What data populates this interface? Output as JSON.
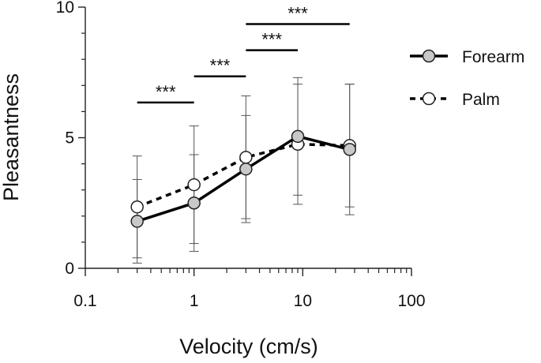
{
  "chart_data": {
    "type": "line",
    "title": "",
    "xlabel": "Velocity (cm/s)",
    "ylabel": "Pleasantness",
    "xscale": "log",
    "xlim": [
      0.1,
      100
    ],
    "ylim": [
      0,
      10
    ],
    "xticks": [
      {
        "value": 0.1,
        "label": "0.1"
      },
      {
        "value": 1,
        "label": "1"
      },
      {
        "value": 10,
        "label": "10"
      },
      {
        "value": 100,
        "label": "100"
      }
    ],
    "yticks": [
      {
        "value": 0,
        "label": "0"
      },
      {
        "value": 5,
        "label": "5"
      },
      {
        "value": 10,
        "label": "10"
      }
    ],
    "x": [
      0.3,
      1,
      3,
      9,
      27
    ],
    "series": [
      {
        "name": "Forearm",
        "values": [
          1.8,
          2.5,
          3.8,
          5.05,
          4.55
        ],
        "errors": [
          1.6,
          1.85,
          2.05,
          2.25,
          2.5
        ],
        "line_style": "solid",
        "marker_fill": "#c8c8c8",
        "color": "#000000"
      },
      {
        "name": "Palm",
        "values": [
          2.35,
          3.2,
          4.25,
          4.75,
          4.7
        ],
        "errors": [
          1.95,
          2.25,
          2.35,
          2.3,
          2.35
        ],
        "line_style": "dashed",
        "marker_fill": "#ffffff",
        "color": "#000000"
      }
    ],
    "significance": [
      {
        "x_from": 0.3,
        "x_to": 1,
        "y": 6.35,
        "label": "***"
      },
      {
        "x_from": 1,
        "x_to": 3,
        "y": 7.35,
        "label": "***"
      },
      {
        "x_from": 3,
        "x_to": 9,
        "y": 8.35,
        "label": "***"
      },
      {
        "x_from": 3,
        "x_to": 27,
        "y": 9.35,
        "label": "***"
      }
    ],
    "legend_position": "top-right",
    "grid": false
  }
}
